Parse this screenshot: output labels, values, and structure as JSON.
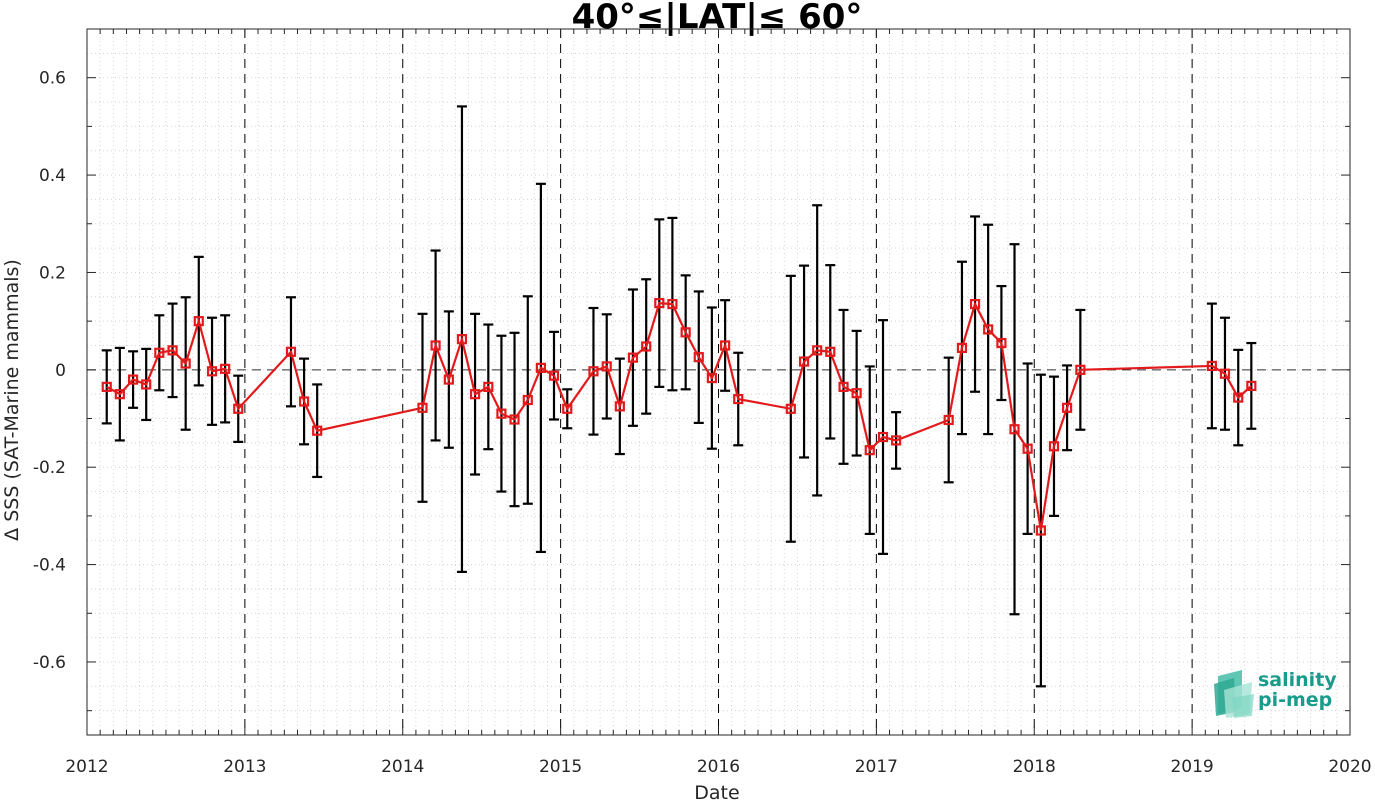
{
  "chart_data": {
    "type": "line",
    "title": "40°≤|LAT|≤ 60°",
    "xlabel": "Date",
    "ylabel": "Δ SSS (SAT-Marine mammals)",
    "xlim": [
      2012,
      2020
    ],
    "ylim": [
      -0.75,
      0.7
    ],
    "xticks": [
      "2012",
      "2013",
      "2014",
      "2015",
      "2016",
      "2017",
      "2018",
      "2019",
      "2020"
    ],
    "yticks": [
      "-0.6",
      "-0.4",
      "-0.2",
      "0",
      "0.2",
      "0.4",
      "0.6"
    ],
    "grid": "dotted minor grid",
    "colors": {
      "line": "#e31a1c",
      "errorbar": "#000000",
      "zero_line": "#333333"
    },
    "year_dividers": [
      2013,
      2014,
      2015,
      2016,
      2017,
      2018,
      2019
    ],
    "series": [
      {
        "x": [
          2012.125,
          2012.208,
          2012.292,
          2012.375,
          2012.458,
          2012.542,
          2012.625,
          2012.708,
          2012.792,
          2012.875,
          2012.958,
          2013.292,
          2013.375,
          2013.458,
          2014.125,
          2014.208,
          2014.292,
          2014.375,
          2014.458,
          2014.542,
          2014.625,
          2014.708,
          2014.792,
          2014.875,
          2014.958,
          2015.042,
          2015.208,
          2015.292,
          2015.375,
          2015.458,
          2015.542,
          2015.625,
          2015.708,
          2015.792,
          2015.875,
          2015.958,
          2016.042,
          2016.125,
          2016.458,
          2016.542,
          2016.625,
          2016.708,
          2016.792,
          2016.875,
          2016.958,
          2017.042,
          2017.125,
          2017.458,
          2017.542,
          2017.625,
          2017.708,
          2017.792,
          2017.875,
          2017.958,
          2018.042,
          2018.125,
          2018.208,
          2018.292,
          2019.125,
          2019.208,
          2019.292,
          2019.375
        ],
        "y": [
          -0.035,
          -0.05,
          -0.02,
          -0.03,
          0.035,
          0.04,
          0.013,
          0.1,
          -0.003,
          0.002,
          -0.08,
          0.037,
          -0.065,
          -0.125,
          -0.078,
          0.05,
          -0.02,
          0.063,
          -0.05,
          -0.035,
          -0.09,
          -0.102,
          -0.062,
          0.004,
          -0.012,
          -0.08,
          -0.003,
          0.007,
          -0.075,
          0.025,
          0.048,
          0.137,
          0.135,
          0.077,
          0.026,
          -0.017,
          0.05,
          -0.06,
          -0.08,
          0.017,
          0.04,
          0.037,
          -0.035,
          -0.048,
          -0.165,
          -0.138,
          -0.145,
          -0.103,
          0.045,
          0.135,
          0.083,
          0.055,
          -0.122,
          -0.162,
          -0.33,
          -0.157,
          -0.078,
          0.0,
          0.008,
          -0.008,
          -0.057,
          -0.033
        ],
        "err": [
          0.075,
          0.095,
          0.058,
          0.073,
          0.077,
          0.096,
          0.136,
          0.132,
          0.11,
          0.11,
          0.068,
          0.112,
          0.088,
          0.095,
          0.193,
          0.195,
          0.14,
          0.478,
          0.165,
          0.128,
          0.16,
          0.178,
          0.213,
          0.378,
          0.09,
          0.04,
          0.13,
          0.107,
          0.098,
          0.14,
          0.138,
          0.172,
          0.177,
          0.117,
          0.135,
          0.145,
          0.093,
          0.095,
          0.273,
          0.197,
          0.298,
          0.178,
          0.158,
          0.128,
          0.172,
          0.24,
          0.058,
          0.128,
          0.177,
          0.18,
          0.215,
          0.117,
          0.38,
          0.175,
          0.32,
          0.143,
          0.087,
          0.123,
          0.128,
          0.115,
          0.098,
          0.088
        ]
      }
    ]
  },
  "logo": {
    "line1": "salinity",
    "line2": "pi-mep"
  }
}
